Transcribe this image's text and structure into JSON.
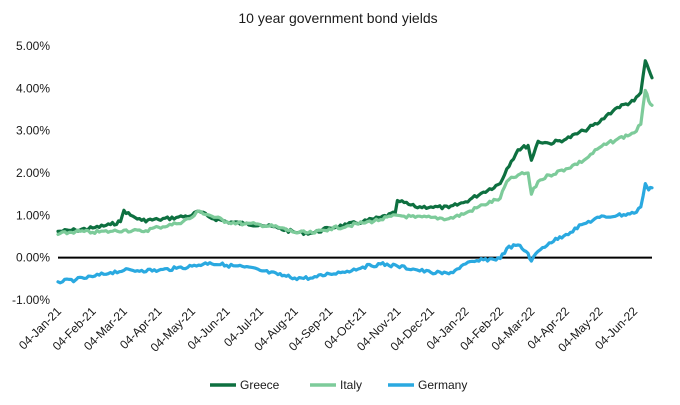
{
  "chart_data": {
    "type": "line",
    "title": "10 year government bond yields",
    "xlabel": "",
    "ylabel": "",
    "ylim": [
      -1.0,
      5.0
    ],
    "yticks": [
      -1.0,
      0.0,
      1.0,
      2.0,
      3.0,
      4.0,
      5.0
    ],
    "ytick_labels": [
      "-1.00%",
      "0.00%",
      "1.00%",
      "2.00%",
      "3.00%",
      "4.00%",
      "5.00%"
    ],
    "xlim": [
      "2021-01-04",
      "2022-06-20"
    ],
    "xticks": [
      "2021-01-04",
      "2021-02-04",
      "2021-03-04",
      "2021-04-04",
      "2021-05-04",
      "2021-06-04",
      "2021-07-04",
      "2021-08-04",
      "2021-09-04",
      "2021-10-04",
      "2021-11-04",
      "2021-12-04",
      "2022-01-04",
      "2022-02-04",
      "2022-03-04",
      "2022-04-04",
      "2022-05-04",
      "2022-06-04"
    ],
    "xtick_labels": [
      "04-Jan-21",
      "04-Feb-21",
      "04-Mar-21",
      "04-Apr-21",
      "04-May-21",
      "04-Jun-21",
      "04-Jul-21",
      "04-Aug-21",
      "04-Sep-21",
      "04-Oct-21",
      "04-Nov-21",
      "04-Dec-21",
      "04-Jan-22",
      "04-Feb-22",
      "04-Mar-22",
      "04-Apr-22",
      "04-May-22",
      "04-Jun-22"
    ],
    "zero_line": true,
    "grid": false,
    "legend_position": "bottom",
    "series": [
      {
        "name": "Greece",
        "color": "#0e7040",
        "x": [
          "2021-01-04",
          "2021-01-20",
          "2021-02-04",
          "2021-02-20",
          "2021-03-01",
          "2021-03-04",
          "2021-03-10",
          "2021-03-20",
          "2021-04-04",
          "2021-04-20",
          "2021-05-04",
          "2021-05-10",
          "2021-05-20",
          "2021-06-04",
          "2021-06-20",
          "2021-07-04",
          "2021-07-20",
          "2021-08-04",
          "2021-08-20",
          "2021-09-04",
          "2021-09-20",
          "2021-10-04",
          "2021-10-20",
          "2021-11-02",
          "2021-11-04",
          "2021-11-20",
          "2021-12-04",
          "2021-12-20",
          "2022-01-04",
          "2022-01-20",
          "2022-02-04",
          "2022-02-10",
          "2022-02-20",
          "2022-03-01",
          "2022-03-04",
          "2022-03-10",
          "2022-03-20",
          "2022-04-04",
          "2022-04-20",
          "2022-05-04",
          "2022-05-10",
          "2022-05-20",
          "2022-06-04",
          "2022-06-10",
          "2022-06-14",
          "2022-06-17",
          "2022-06-20"
        ],
        "y": [
          0.62,
          0.65,
          0.7,
          0.78,
          0.85,
          1.12,
          1.0,
          0.88,
          0.9,
          0.95,
          1.0,
          1.1,
          0.95,
          0.85,
          0.8,
          0.78,
          0.7,
          0.6,
          0.58,
          0.7,
          0.78,
          0.85,
          0.95,
          1.05,
          1.35,
          1.2,
          1.2,
          1.18,
          1.32,
          1.55,
          1.75,
          2.1,
          2.55,
          2.65,
          2.3,
          2.75,
          2.7,
          2.8,
          3.0,
          3.2,
          3.35,
          3.55,
          3.7,
          3.9,
          4.65,
          4.45,
          4.25
        ]
      },
      {
        "name": "Italy",
        "color": "#7dcb9a",
        "x": [
          "2021-01-04",
          "2021-01-20",
          "2021-02-04",
          "2021-02-20",
          "2021-03-04",
          "2021-03-20",
          "2021-04-04",
          "2021-04-20",
          "2021-05-04",
          "2021-05-10",
          "2021-05-20",
          "2021-06-04",
          "2021-06-20",
          "2021-07-04",
          "2021-07-20",
          "2021-08-04",
          "2021-08-20",
          "2021-09-04",
          "2021-09-20",
          "2021-10-04",
          "2021-10-20",
          "2021-11-04",
          "2021-11-20",
          "2021-12-04",
          "2021-12-20",
          "2022-01-04",
          "2022-01-20",
          "2022-02-04",
          "2022-02-10",
          "2022-02-20",
          "2022-03-01",
          "2022-03-04",
          "2022-03-10",
          "2022-03-20",
          "2022-04-04",
          "2022-04-20",
          "2022-05-04",
          "2022-05-20",
          "2022-06-04",
          "2022-06-10",
          "2022-06-14",
          "2022-06-17",
          "2022-06-20"
        ],
        "y": [
          0.55,
          0.62,
          0.6,
          0.62,
          0.65,
          0.62,
          0.72,
          0.8,
          0.95,
          1.1,
          1.0,
          0.85,
          0.8,
          0.78,
          0.72,
          0.6,
          0.58,
          0.68,
          0.75,
          0.82,
          0.9,
          1.0,
          0.95,
          0.95,
          0.92,
          1.05,
          1.25,
          1.4,
          1.8,
          1.95,
          2.0,
          1.5,
          1.8,
          1.95,
          2.1,
          2.3,
          2.6,
          2.8,
          2.95,
          3.15,
          3.95,
          3.7,
          3.6
        ]
      },
      {
        "name": "Germany",
        "color": "#2aa9e0",
        "x": [
          "2021-01-04",
          "2021-01-20",
          "2021-02-04",
          "2021-02-20",
          "2021-03-04",
          "2021-03-20",
          "2021-04-04",
          "2021-04-20",
          "2021-05-04",
          "2021-05-20",
          "2021-06-04",
          "2021-06-20",
          "2021-07-04",
          "2021-07-20",
          "2021-08-04",
          "2021-08-20",
          "2021-09-04",
          "2021-09-20",
          "2021-10-04",
          "2021-10-20",
          "2021-11-04",
          "2021-11-20",
          "2021-12-04",
          "2021-12-20",
          "2022-01-04",
          "2022-01-20",
          "2022-02-04",
          "2022-02-10",
          "2022-02-20",
          "2022-03-01",
          "2022-03-04",
          "2022-03-10",
          "2022-03-20",
          "2022-04-04",
          "2022-04-20",
          "2022-05-04",
          "2022-05-20",
          "2022-06-04",
          "2022-06-10",
          "2022-06-14",
          "2022-06-17",
          "2022-06-20"
        ],
        "y": [
          -0.57,
          -0.52,
          -0.45,
          -0.35,
          -0.3,
          -0.3,
          -0.3,
          -0.25,
          -0.2,
          -0.12,
          -0.18,
          -0.22,
          -0.3,
          -0.4,
          -0.48,
          -0.48,
          -0.38,
          -0.32,
          -0.22,
          -0.15,
          -0.2,
          -0.28,
          -0.35,
          -0.38,
          -0.15,
          -0.05,
          -0.02,
          0.22,
          0.3,
          0.1,
          -0.08,
          0.15,
          0.35,
          0.55,
          0.8,
          0.95,
          1.0,
          1.05,
          1.2,
          1.75,
          1.6,
          1.65
        ]
      }
    ]
  }
}
